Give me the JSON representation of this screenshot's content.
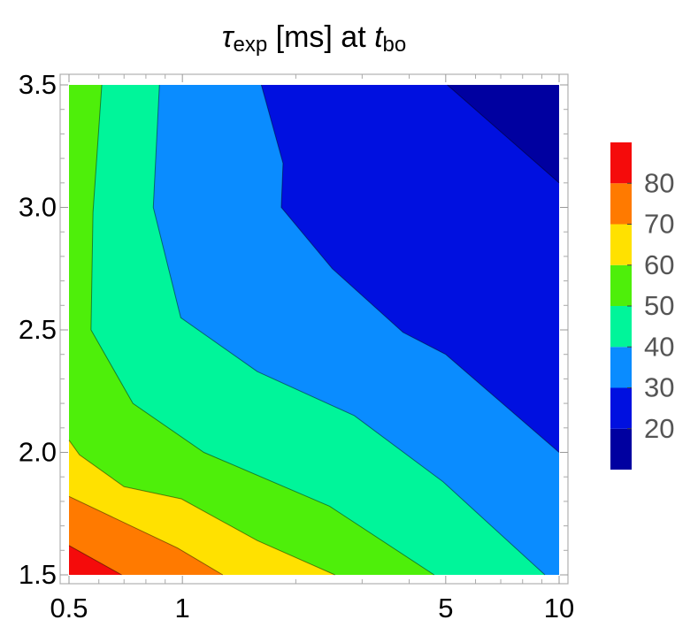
{
  "chart_data": {
    "type": "contour",
    "title": [
      "τ",
      "exp",
      " [ms] at ",
      "t",
      "bo"
    ],
    "xscale": "log",
    "xlim": [
      0.5,
      10
    ],
    "ylim": [
      1.5,
      3.5
    ],
    "xticks": [
      0.5,
      1,
      5,
      10
    ],
    "xminor": [
      0.6,
      0.7,
      0.8,
      0.9,
      2,
      3,
      4,
      6,
      7,
      8,
      9
    ],
    "yticks": [
      {
        "value": 1.5,
        "label": "1.5"
      },
      {
        "value": 2,
        "label": "2.0"
      },
      {
        "value": 2.5,
        "label": "2.5"
      },
      {
        "value": 3,
        "label": "3.0"
      },
      {
        "value": 3.5,
        "label": "3.5"
      }
    ],
    "yminor": [
      1.6,
      1.7,
      1.8,
      1.9,
      2.1,
      2.2,
      2.3,
      2.4,
      2.6,
      2.7,
      2.8,
      2.9,
      3.1,
      3.2,
      3.3,
      3.4
    ],
    "levels": [
      10,
      20,
      30,
      40,
      50,
      60,
      70,
      80,
      90
    ],
    "colors": [
      "#0000a0",
      "#0010e0",
      "#0a8cff",
      "#00f59a",
      "#4eef0a",
      "#ffe100",
      "#ff7a00",
      "#f50b0b"
    ],
    "colorbar_ticks": [
      20,
      30,
      40,
      50,
      60,
      70,
      80
    ],
    "contours": [
      {
        "level": 80,
        "x": [
          0.5,
          0.69
        ],
        "y": [
          1.62,
          1.5
        ]
      },
      {
        "level": 70,
        "x": [
          0.5,
          0.97,
          1.28
        ],
        "y": [
          1.82,
          1.61,
          1.5
        ]
      },
      {
        "level": 60,
        "x": [
          0.5,
          0.533,
          0.7,
          0.995,
          1.58,
          2.54
        ],
        "y": [
          2.05,
          1.99,
          1.86,
          1.81,
          1.64,
          1.5
        ]
      },
      {
        "level": 50,
        "x": [
          0.611,
          0.579,
          0.572,
          0.739,
          1.14,
          2.46,
          4.66
        ],
        "y": [
          3.5,
          2.98,
          2.5,
          2.2,
          2.0,
          1.78,
          1.5
        ]
      },
      {
        "level": 40,
        "x": [
          0.869,
          0.837,
          0.99,
          1.58,
          2.86,
          4.92,
          9.17
        ],
        "y": [
          3.5,
          3.0,
          2.55,
          2.33,
          2.15,
          1.88,
          1.5
        ]
      },
      {
        "level": 30,
        "x": [
          1.62,
          1.85,
          1.83,
          2.5,
          3.85,
          5.0,
          10
        ],
        "y": [
          3.5,
          3.18,
          3.0,
          2.75,
          2.49,
          2.4,
          2.0
        ]
      },
      {
        "level": 20,
        "x": [
          5.05,
          10
        ],
        "y": [
          3.5,
          3.1
        ]
      }
    ]
  }
}
